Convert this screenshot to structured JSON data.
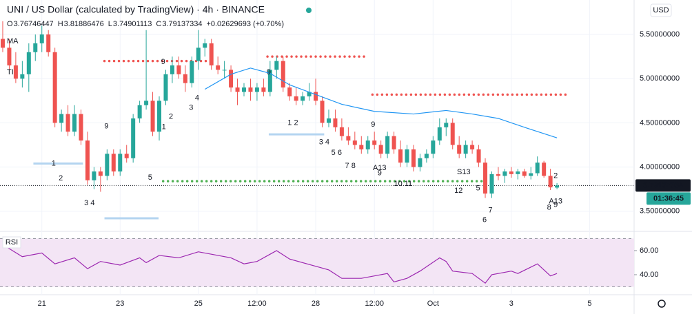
{
  "chart_data": {
    "type": "candlestick",
    "title": "UNI / US Dollar (calculated by TradingView) · 4h · BINANCE",
    "ohlc_labels": [
      "O",
      "H",
      "L",
      "C"
    ],
    "change_label": "+0.02629693 (+0.70%)",
    "indicator_labels": [
      "MA",
      "TI"
    ],
    "currency": "USD",
    "countdown": "01:36:45",
    "up_color": "#26a69a",
    "down_color": "#ef5350",
    "candles": {
      "open": [
        5.45,
        5.35,
        5.15,
        5.0,
        5.05,
        5.3,
        5.4,
        5.5,
        5.3,
        4.5,
        4.6,
        4.4,
        4.6,
        4.3,
        3.85,
        3.95,
        3.9,
        4.15,
        3.95,
        4.15,
        4.1,
        4.55,
        4.7,
        4.75,
        4.4,
        4.75,
        5.05,
        5.15,
        5.05,
        4.95,
        5.2,
        5.35,
        5.4,
        5.15,
        5.1,
        5.1,
        4.9,
        4.85,
        4.9,
        4.85,
        4.9,
        4.85,
        5.1,
        5.2,
        4.9,
        4.8,
        4.75,
        4.8,
        4.85,
        4.75,
        4.5,
        4.55,
        4.45,
        4.35,
        4.3,
        4.25,
        4.2,
        4.3,
        4.25,
        4.15,
        4.35,
        4.2,
        4.05,
        4.2,
        4.0,
        4.1,
        4.15,
        4.3,
        4.45,
        4.5,
        4.25,
        4.15,
        4.25,
        4.2,
        4.05,
        3.7,
        3.92,
        3.9,
        3.95,
        3.92,
        3.95,
        3.9,
        3.93,
        4.05,
        3.9,
        3.76746447
      ],
      "high": [
        5.65,
        5.45,
        5.3,
        5.2,
        5.4,
        5.5,
        5.6,
        5.55,
        5.35,
        4.65,
        4.7,
        4.7,
        4.65,
        4.4,
        4.0,
        4.0,
        4.2,
        4.2,
        4.2,
        4.25,
        4.6,
        4.75,
        5.55,
        4.85,
        4.8,
        5.1,
        5.25,
        5.25,
        5.15,
        5.25,
        5.55,
        5.45,
        5.45,
        5.25,
        5.2,
        5.15,
        5.0,
        4.95,
        5.0,
        4.95,
        5.0,
        5.2,
        5.25,
        5.25,
        4.95,
        4.9,
        4.85,
        4.95,
        5.0,
        4.8,
        4.65,
        4.65,
        4.55,
        4.45,
        4.4,
        4.35,
        4.35,
        4.4,
        4.3,
        4.4,
        4.4,
        4.3,
        4.25,
        4.25,
        4.15,
        4.2,
        4.35,
        4.55,
        4.55,
        4.55,
        4.35,
        4.3,
        4.3,
        4.25,
        4.1,
        3.95,
        4.0,
        3.98,
        4.0,
        3.98,
        3.98,
        4.0,
        4.12,
        4.07,
        3.98,
        3.81886476
      ],
      "low": [
        5.3,
        5.1,
        4.95,
        4.9,
        4.85,
        5.2,
        5.3,
        5.25,
        4.45,
        4.4,
        4.35,
        4.35,
        4.25,
        3.8,
        3.75,
        3.72,
        3.85,
        3.9,
        3.9,
        4.05,
        4.05,
        4.5,
        4.65,
        4.35,
        4.3,
        4.7,
        4.95,
        5.0,
        4.85,
        4.9,
        5.1,
        5.25,
        5.1,
        5.05,
        5.0,
        4.85,
        4.7,
        4.8,
        4.75,
        4.75,
        4.8,
        4.8,
        5.0,
        4.85,
        4.75,
        4.7,
        4.7,
        4.75,
        4.7,
        4.45,
        4.45,
        4.4,
        4.3,
        4.25,
        4.2,
        4.15,
        4.15,
        4.2,
        4.1,
        4.1,
        4.15,
        4.0,
        4.0,
        3.95,
        3.95,
        4.05,
        4.1,
        4.25,
        4.35,
        4.2,
        4.1,
        4.1,
        4.15,
        4.0,
        3.65,
        3.65,
        3.85,
        3.82,
        3.88,
        3.86,
        3.88,
        3.86,
        3.9,
        3.88,
        3.74,
        3.74901113
      ],
      "close": [
        5.35,
        5.15,
        5.0,
        5.05,
        5.3,
        5.4,
        5.5,
        5.3,
        4.5,
        4.6,
        4.4,
        4.6,
        4.3,
        3.85,
        3.95,
        3.9,
        4.15,
        3.95,
        4.15,
        4.1,
        4.55,
        4.7,
        4.75,
        4.4,
        4.75,
        5.05,
        5.15,
        5.05,
        4.95,
        5.2,
        5.35,
        5.4,
        5.15,
        5.1,
        5.1,
        4.9,
        4.85,
        4.9,
        4.85,
        4.9,
        4.85,
        5.1,
        5.2,
        4.9,
        4.8,
        4.75,
        4.8,
        4.85,
        4.75,
        4.5,
        4.55,
        4.45,
        4.35,
        4.3,
        4.25,
        4.2,
        4.3,
        4.25,
        4.15,
        4.35,
        4.2,
        4.05,
        4.2,
        4.0,
        4.1,
        4.15,
        4.3,
        4.45,
        4.5,
        4.25,
        4.15,
        4.25,
        4.2,
        4.05,
        3.7,
        3.92,
        3.9,
        3.95,
        3.92,
        3.95,
        3.9,
        3.93,
        4.05,
        3.9,
        3.77,
        3.79137334
      ]
    },
    "ma": {
      "color": "#2196f3",
      "x": [
        31,
        35,
        38,
        41,
        44,
        48,
        52,
        57,
        63,
        68,
        72,
        76,
        80,
        85
      ],
      "values": [
        4.88,
        5.05,
        5.12,
        5.06,
        4.93,
        4.82,
        4.71,
        4.63,
        4.6,
        4.64,
        4.6,
        4.55,
        4.45,
        4.33
      ]
    },
    "levels": [
      {
        "x": [
          15.6,
          31.3
        ],
        "price": 5.2,
        "color": "#ef5350",
        "style": "dotted"
      },
      {
        "x": [
          40.6,
          56.1
        ],
        "price": 5.25,
        "color": "#ef5350",
        "style": "dotted"
      },
      {
        "x": [
          56.7,
          86.8
        ],
        "price": 4.82,
        "color": "#ef5350",
        "style": "dotted"
      },
      {
        "x": [
          24.6,
          73.6
        ],
        "price": 3.84,
        "color": "#4caf50",
        "style": "dotted"
      },
      {
        "x": [
          4.7,
          12.3
        ],
        "price": 4.04,
        "color": "#b3d4f0",
        "style": "solid"
      },
      {
        "x": [
          15.6,
          23.9
        ],
        "price": 3.42,
        "color": "#b3d4f0",
        "style": "solid"
      },
      {
        "x": [
          40.8,
          49.3
        ],
        "price": 4.37,
        "color": "#b3d4f0",
        "style": "solid"
      }
    ],
    "annotations": [
      {
        "text": "1",
        "x": 7.8,
        "y": 4.04,
        "color": "#ef5350"
      },
      {
        "text": "2",
        "x": 8.9,
        "y": 3.87,
        "color": "#ef5350"
      },
      {
        "text": "3 4",
        "x": 13.3,
        "y": 3.59,
        "color": "#ef5350"
      },
      {
        "text": "9",
        "x": 15.9,
        "y": 4.46,
        "color": "#f7a21b"
      },
      {
        "text": "5",
        "x": 22.6,
        "y": 3.88,
        "color": "#ef5350"
      },
      {
        "text": "9",
        "x": 24.6,
        "y": 5.19,
        "color": "#f7a21b"
      },
      {
        "text": "1",
        "x": 24.7,
        "y": 4.45,
        "color": "#26a69a"
      },
      {
        "text": "2",
        "x": 25.8,
        "y": 4.57,
        "color": "#26a69a"
      },
      {
        "text": "3",
        "x": 28.9,
        "y": 4.67,
        "color": "#26a69a"
      },
      {
        "text": "4",
        "x": 29.8,
        "y": 4.78,
        "color": "#26a69a"
      },
      {
        "text": "9",
        "x": 40.8,
        "y": 5.07,
        "color": "#ef5350"
      },
      {
        "text": "1 2",
        "x": 44.5,
        "y": 4.5,
        "color": "#ef5350"
      },
      {
        "text": "3 4",
        "x": 49.3,
        "y": 4.28,
        "color": "#ef5350"
      },
      {
        "text": "5 6",
        "x": 51.2,
        "y": 4.16,
        "color": "#ef5350"
      },
      {
        "text": "7 8",
        "x": 53.3,
        "y": 4.01,
        "color": "#ef5350"
      },
      {
        "text": "9",
        "x": 56.8,
        "y": 4.48,
        "color": "#ef5350"
      },
      {
        "text": "A13",
        "x": 57.8,
        "y": 3.99,
        "color": "#2196f3"
      },
      {
        "text": "9",
        "x": 57.8,
        "y": 3.93,
        "color": "#ef5350"
      },
      {
        "text": "10 11",
        "x": 61.4,
        "y": 3.81,
        "color": "#ef5350"
      },
      {
        "text": "12",
        "x": 69.9,
        "y": 3.73,
        "color": "#ef5350"
      },
      {
        "text": "S13",
        "x": 70.7,
        "y": 3.94,
        "color": "#f7a21b"
      },
      {
        "text": "5",
        "x": 72.9,
        "y": 3.76,
        "color": "#ef5350"
      },
      {
        "text": "6",
        "x": 73.9,
        "y": 3.4,
        "color": "#ef5350"
      },
      {
        "text": "7",
        "x": 74.8,
        "y": 3.51,
        "color": "#ef5350"
      },
      {
        "text": "2",
        "x": 84.8,
        "y": 3.9,
        "color": "#ef5350"
      },
      {
        "text": "A13",
        "x": 84.8,
        "y": 3.61,
        "color": "#2196f3"
      },
      {
        "text": "8",
        "x": 83.8,
        "y": 3.54,
        "color": "#ef5350"
      },
      {
        "text": "9",
        "x": 84.8,
        "y": 3.57,
        "color": "#ef5350"
      }
    ],
    "xlim": [
      -0.42,
      96.83
    ],
    "xticks": [
      {
        "value": 6,
        "label": "21"
      },
      {
        "value": 18,
        "label": "23"
      },
      {
        "value": 30,
        "label": "25"
      },
      {
        "value": 39,
        "label": "12:00"
      },
      {
        "value": 48,
        "label": "28"
      },
      {
        "value": 57,
        "label": "12:00"
      },
      {
        "value": 66,
        "label": "Oct"
      },
      {
        "value": 78,
        "label": "3"
      },
      {
        "value": 90,
        "label": "5"
      }
    ],
    "ylim": [
      3.28,
      5.89
    ],
    "yticks": [
      {
        "value": 5.5,
        "label": "5.50000000"
      },
      {
        "value": 5.0,
        "label": "5.00000000"
      },
      {
        "value": 4.5,
        "label": "4.50000000"
      },
      {
        "value": 4.0,
        "label": "4.00000000"
      },
      {
        "value": 3.5,
        "label": "3.50000000"
      }
    ],
    "rsi": {
      "label": "RSI",
      "color": "#9c27b0",
      "band_color": "#f3e5f5",
      "x": [
        0,
        3,
        6,
        8,
        11,
        13,
        15,
        18,
        21,
        22,
        24,
        27,
        30,
        32,
        35,
        37,
        39,
        41,
        42,
        44,
        48,
        50,
        52,
        55,
        57,
        59,
        60,
        62,
        64,
        67,
        68,
        69,
        72,
        74,
        75,
        78,
        79,
        82,
        84,
        85
      ],
      "values": [
        65,
        55,
        58,
        49,
        54,
        45,
        51,
        48,
        54,
        50,
        56,
        54,
        59,
        57,
        54,
        49,
        51,
        57,
        60,
        53,
        47,
        44,
        37,
        37,
        39,
        41,
        34,
        37,
        43,
        54,
        51,
        43,
        41,
        33,
        40,
        43,
        41,
        49,
        39,
        41
      ],
      "bands": [
        30,
        70
      ],
      "ylim": [
        23.4,
        75.4
      ],
      "yticks": [
        {
          "value": 60,
          "label": "60.00"
        },
        {
          "value": 40,
          "label": "40.00"
        }
      ]
    }
  }
}
